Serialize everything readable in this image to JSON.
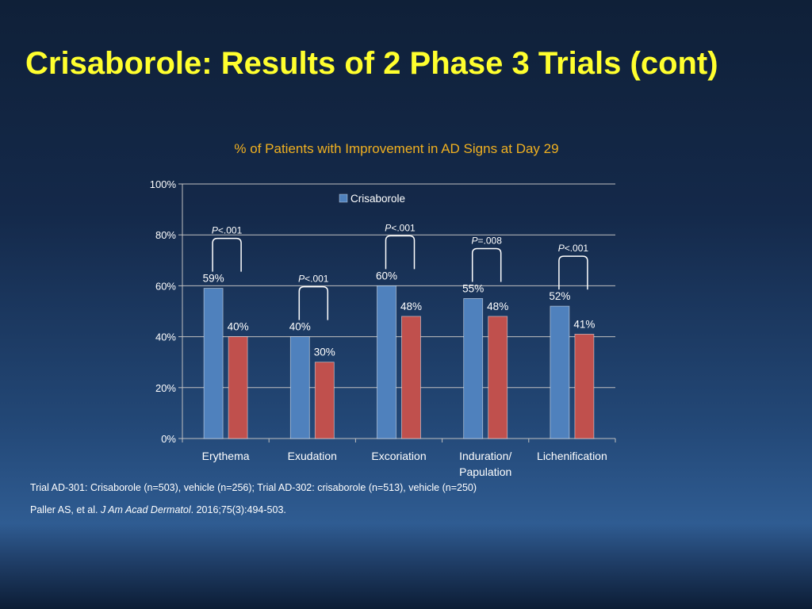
{
  "title": "Crisaborole: Results of 2 Phase 3 Trials (cont)",
  "footnotes": {
    "trials": "Trial AD-301: Crisaborole (n=503), vehicle (n=256); Trial AD-302: crisaborole (n=513), vehicle (n=250)",
    "citation": {
      "authors": "Paller AS, et al. ",
      "journal": "J Am Acad Dermatol",
      "details": ". 2016;75(3):494-503."
    }
  },
  "colors": {
    "title": "#ffff2e",
    "chart_title": "#f0b020",
    "crisaborole": "#4f81bd",
    "vehicle": "#c0504d"
  },
  "chart_data": {
    "type": "bar",
    "title": "% of Patients with Improvement in AD Signs at Day 29",
    "categories": [
      "Erythema",
      "Exudation",
      "Excoriation",
      "Induration/\nPapulation",
      "Lichenification"
    ],
    "series": [
      {
        "name": "Crisaborole",
        "values": [
          59,
          40,
          60,
          55,
          52
        ],
        "labels": [
          "59%",
          "40%",
          "60%",
          "55%",
          "52%"
        ]
      },
      {
        "values": [
          40,
          30,
          48,
          48,
          41
        ],
        "labels": [
          "40%",
          "30%",
          "48%",
          "48%",
          "41%"
        ]
      }
    ],
    "ylim": [
      0,
      100
    ],
    "yticks": [
      "0%",
      "20%",
      "40%",
      "60%",
      "80%",
      "100%"
    ],
    "grid": true,
    "legend": "top-center",
    "annotations": [
      {
        "category": "Erythema",
        "p_value": "<.001"
      },
      {
        "category": "Exudation",
        "p_value": "<.001"
      },
      {
        "category": "Excoriation",
        "p_value": "<.001"
      },
      {
        "category": "Induration/\nPapulation",
        "p_value": "=.008"
      },
      {
        "category": "Lichenification",
        "p_value": "<.001"
      }
    ]
  }
}
